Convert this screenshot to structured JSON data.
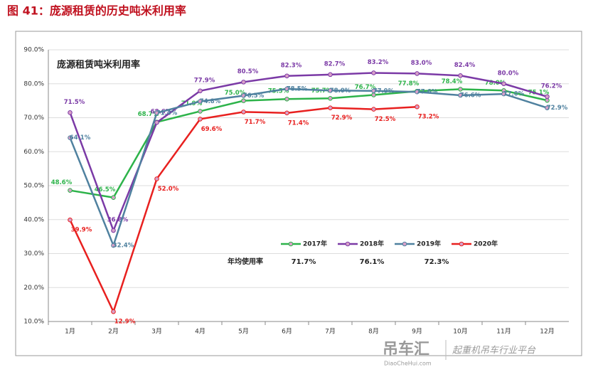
{
  "chart_data": {
    "type": "line",
    "title": "图 41：庞源租赁的历史吨米利用率",
    "subtitle": "庞源租赁吨米利用率",
    "categories": [
      "1月",
      "2月",
      "3月",
      "4月",
      "5月",
      "6月",
      "7月",
      "8月",
      "9月",
      "10月",
      "11月",
      "12月"
    ],
    "ylim": [
      10,
      90
    ],
    "yticks": [
      {
        "value": 10,
        "label": "10.0%"
      },
      {
        "value": 20,
        "label": "20.0%"
      },
      {
        "value": 30,
        "label": "30.0%"
      },
      {
        "value": 40,
        "label": "40.0%"
      },
      {
        "value": 50,
        "label": "50.0%"
      },
      {
        "value": 60,
        "label": "60.0%"
      },
      {
        "value": 70,
        "label": "70.0%"
      },
      {
        "value": 80,
        "label": "80.0%"
      },
      {
        "value": 90,
        "label": "90.0%"
      }
    ],
    "grid": true,
    "series": [
      {
        "name": "2017年",
        "color": "#2db34a",
        "values": [
          48.6,
          46.5,
          68.7,
          71.9,
          75.0,
          75.5,
          75.7,
          76.7,
          77.8,
          78.4,
          78.0,
          75.1
        ],
        "value_labels": [
          "48.6%",
          "46.5%",
          "68.7%",
          "71.9%",
          "75.0%",
          "75.5%",
          "75.7%",
          "76.7%",
          "77.8%",
          "78.4%",
          "78.0%",
          "75.1%"
        ]
      },
      {
        "name": "2018年",
        "color": "#7b3aa6",
        "values": [
          71.5,
          36.8,
          68.6,
          77.9,
          80.5,
          82.3,
          82.7,
          83.2,
          83.0,
          82.4,
          80.0,
          76.2
        ],
        "value_labels": [
          "71.5%",
          "36.8%",
          "68.6%",
          "77.9%",
          "80.5%",
          "82.3%",
          "82.7%",
          "83.2%",
          "83.0%",
          "82.4%",
          "80.0%",
          "76.2%"
        ]
      },
      {
        "name": "2019年",
        "color": "#4f819f",
        "values": [
          64.1,
          32.4,
          71.4,
          74.8,
          76.5,
          78.5,
          78.0,
          77.9,
          77.6,
          76.6,
          77.0,
          72.9
        ],
        "value_labels": [
          "64.1%",
          "32.4%",
          "71.4%",
          "74.8%",
          "76.5%",
          "78.5%",
          "78.0%",
          "77.9%",
          "77.6%",
          "76.6%",
          "77.0%",
          "72.9%"
        ]
      },
      {
        "name": "2020年",
        "color": "#e8201f",
        "values": [
          39.9,
          12.9,
          52.0,
          69.6,
          71.7,
          71.4,
          72.9,
          72.5,
          73.2,
          null,
          null,
          null
        ],
        "value_labels": [
          "39.9%",
          "12.9%",
          "52.0%",
          "69.6%",
          "71.7%",
          "71.4%",
          "72.9%",
          "72.5%",
          "73.2%",
          null,
          null,
          null
        ]
      }
    ],
    "annual_label": "年均使用率",
    "annual_values": [
      "71.7%",
      "76.1%",
      "72.3%"
    ]
  },
  "watermark": {
    "brand": "吊车汇",
    "site": "DiaoCheHui.com",
    "slogan": "起重机吊车行业平台"
  }
}
